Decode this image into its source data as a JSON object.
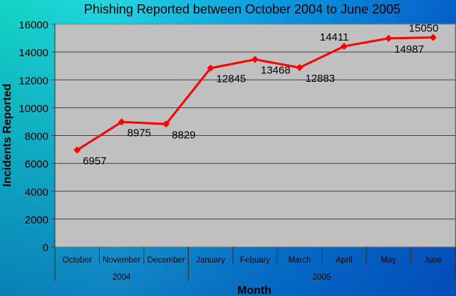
{
  "chart_data": {
    "type": "line",
    "title": "Phishing Reported between October 2004 to June 2005",
    "xlabel": "Month",
    "ylabel": "Incidents Reported",
    "categories": [
      "October",
      "November",
      "December",
      "January",
      "Febuary",
      "March",
      "April",
      "May",
      "June"
    ],
    "groups": [
      {
        "label": "2004",
        "span": 3
      },
      {
        "label": "2005",
        "span": 6
      }
    ],
    "values": [
      6957,
      8975,
      8829,
      12845,
      13468,
      12883,
      14411,
      14987,
      15050
    ],
    "data_labels": [
      "6957",
      "8975",
      "8829",
      "12845",
      "13468",
      "12883",
      "14411",
      "14987",
      "15050"
    ],
    "ylim": [
      0,
      16000
    ],
    "yticks": [
      "0",
      "2000",
      "4000",
      "6000",
      "8000",
      "10000",
      "12000",
      "14000",
      "16000"
    ],
    "grid": true,
    "legend": "none",
    "colors": {
      "line": "#ff0000",
      "plot_bg": "#c0c0c0",
      "grid": "#404040"
    }
  }
}
